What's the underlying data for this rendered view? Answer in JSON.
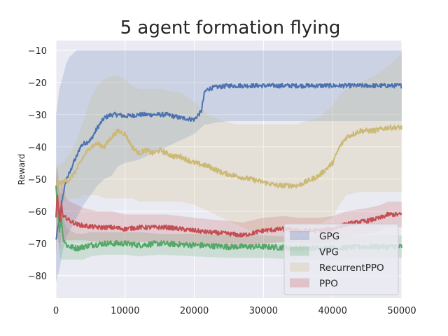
{
  "chart_data": {
    "type": "line",
    "title": "5 agent formation flying",
    "xlabel": "",
    "ylabel": "Reward",
    "xlim": [
      0,
      50000
    ],
    "ylim": [
      -87,
      -7
    ],
    "xticks": [
      "0",
      "10000",
      "20000",
      "30000",
      "40000",
      "50000"
    ],
    "yticks": [
      "−10",
      "−20",
      "−30",
      "−40",
      "−50",
      "−60",
      "−70",
      "−80"
    ],
    "grid": true,
    "legend_position": "bottom-right",
    "series": [
      {
        "name": "GPG",
        "color": "#4c72b0",
        "x": [
          0,
          500,
          1000,
          1500,
          2000,
          2500,
          3000,
          3500,
          4000,
          5000,
          6000,
          7000,
          8000,
          9000,
          10000,
          12000,
          14000,
          16000,
          18000,
          20000,
          21000,
          21500,
          22000,
          23000,
          25000,
          30000,
          35000,
          40000,
          45000,
          50000
        ],
        "y": [
          -69,
          -62,
          -55,
          -50,
          -48,
          -45,
          -43,
          -40,
          -39,
          -38,
          -34,
          -31,
          -30,
          -30,
          -30.5,
          -30,
          -30,
          -30,
          -31,
          -31.5,
          -29,
          -23,
          -22,
          -21.5,
          -21,
          -21,
          -21,
          -21,
          -21,
          -21
        ],
        "band_upper": [
          -30,
          -22,
          -18,
          -14,
          -12,
          -11,
          -10,
          -10,
          -10,
          -10,
          -10,
          -10,
          -10,
          -10,
          -10,
          -10,
          -10,
          -10,
          -10,
          -10,
          -10,
          -10,
          -10,
          -10,
          -10,
          -10,
          -10,
          -10,
          -10,
          -10
        ],
        "band_lower": [
          -82,
          -78,
          -72,
          -68,
          -66,
          -64,
          -62,
          -60,
          -58,
          -55,
          -52,
          -50,
          -49,
          -46,
          -45,
          -44,
          -42,
          -40,
          -38,
          -36,
          -34,
          -33,
          -33,
          -32.5,
          -32,
          -32,
          -32,
          -32,
          -32,
          -32
        ]
      },
      {
        "name": "VPG",
        "color": "#55a868",
        "x": [
          0,
          200,
          500,
          800,
          1000,
          1500,
          2000,
          3000,
          4000,
          5000,
          7000,
          10000,
          12000,
          15000,
          20000,
          25000,
          30000,
          35000,
          40000,
          45000,
          50000
        ],
        "y": [
          -52,
          -58,
          -66,
          -62,
          -68,
          -70.5,
          -71,
          -71.5,
          -71,
          -70.5,
          -70,
          -70,
          -70.5,
          -70,
          -70.5,
          -71,
          -71,
          -71.5,
          -71.5,
          -71,
          -71
        ],
        "band_upper": [
          -46,
          -50,
          -54,
          -55,
          -62,
          -65,
          -66,
          -67,
          -67,
          -66.5,
          -66.5,
          -66.5,
          -66.5,
          -67,
          -67,
          -67.5,
          -67.5,
          -68,
          -68,
          -67.5,
          -67.5
        ],
        "band_lower": [
          -58,
          -65,
          -74,
          -75,
          -75,
          -75,
          -75,
          -75,
          -75,
          -74,
          -73.5,
          -73.5,
          -74,
          -73.5,
          -74,
          -74.5,
          -74.5,
          -75,
          -75,
          -74.5,
          -74.5
        ]
      },
      {
        "name": "RecurrentPPO",
        "color": "#ccb974",
        "x": [
          0,
          1000,
          2000,
          3000,
          4000,
          5000,
          6000,
          7000,
          8000,
          9000,
          10000,
          11000,
          12000,
          13000,
          14000,
          15000,
          17000,
          18000,
          20000,
          22000,
          24000,
          26000,
          28000,
          30000,
          32000,
          34000,
          35000,
          36000,
          38000,
          39000,
          40000,
          41000,
          42000,
          44000,
          46000,
          48000,
          50000
        ],
        "y": [
          -52,
          -51,
          -50,
          -47,
          -43,
          -40,
          -39,
          -40,
          -37,
          -35,
          -36,
          -40,
          -42,
          -41,
          -42,
          -41,
          -43,
          -43,
          -45,
          -46,
          -48,
          -49,
          -50,
          -51,
          -52,
          -52,
          -52,
          -51,
          -49,
          -47,
          -45,
          -40,
          -37,
          -35,
          -35,
          -34,
          -34
        ],
        "band_upper": [
          -46,
          -45,
          -42,
          -38,
          -32,
          -25,
          -21,
          -19,
          -18,
          -18,
          -19,
          -21,
          -22,
          -22,
          -22,
          -22,
          -23,
          -23,
          -26,
          -30,
          -32,
          -33,
          -33,
          -33,
          -33,
          -33,
          -33,
          -32,
          -31,
          -29,
          -27,
          -24,
          -22,
          -20,
          -18,
          -15,
          -11
        ],
        "band_lower": [
          -58,
          -57,
          -56,
          -56,
          -55,
          -55,
          -55,
          -56,
          -56,
          -56,
          -56,
          -56,
          -57,
          -57,
          -57,
          -57,
          -57,
          -57,
          -58,
          -60,
          -62,
          -64,
          -66,
          -66,
          -66,
          -66,
          -66,
          -65,
          -64,
          -63,
          -62,
          -58,
          -55,
          -54,
          -54,
          -54,
          -54
        ]
      },
      {
        "name": "PPO",
        "color": "#c44e52",
        "x": [
          0,
          200,
          400,
          600,
          800,
          1000,
          1500,
          2000,
          3000,
          4000,
          6000,
          8000,
          10000,
          12000,
          14000,
          16000,
          18000,
          20000,
          22000,
          25000,
          27000,
          30000,
          33000,
          35000,
          38000,
          40000,
          42000,
          45000,
          47000,
          48000,
          50000
        ],
        "y": [
          -62,
          -55,
          -60,
          -64,
          -57,
          -62,
          -62,
          -63,
          -64,
          -64.5,
          -65,
          -65,
          -65.5,
          -65,
          -65,
          -65,
          -65.5,
          -66,
          -66.5,
          -67,
          -67.5,
          -66,
          -65.5,
          -66,
          -66,
          -65.5,
          -64,
          -63,
          -62,
          -61,
          -61
        ],
        "band_upper": [
          -50,
          -46,
          -50,
          -55,
          -49,
          -53,
          -56,
          -57,
          -58,
          -59,
          -60,
          -60,
          -61,
          -61,
          -61,
          -61,
          -61.5,
          -62,
          -62.5,
          -63,
          -63.5,
          -62,
          -61.5,
          -62,
          -62,
          -61.5,
          -60,
          -59,
          -58,
          -57,
          -57
        ],
        "band_lower": [
          -74,
          -68,
          -70,
          -72,
          -67,
          -70,
          -69,
          -69,
          -69,
          -69,
          -69.5,
          -69.5,
          -70,
          -69.5,
          -69.5,
          -69.5,
          -70,
          -70,
          -70.5,
          -71,
          -71.5,
          -70,
          -69.5,
          -70,
          -70,
          -69.5,
          -68,
          -67,
          -66,
          -65,
          -65
        ]
      }
    ]
  }
}
